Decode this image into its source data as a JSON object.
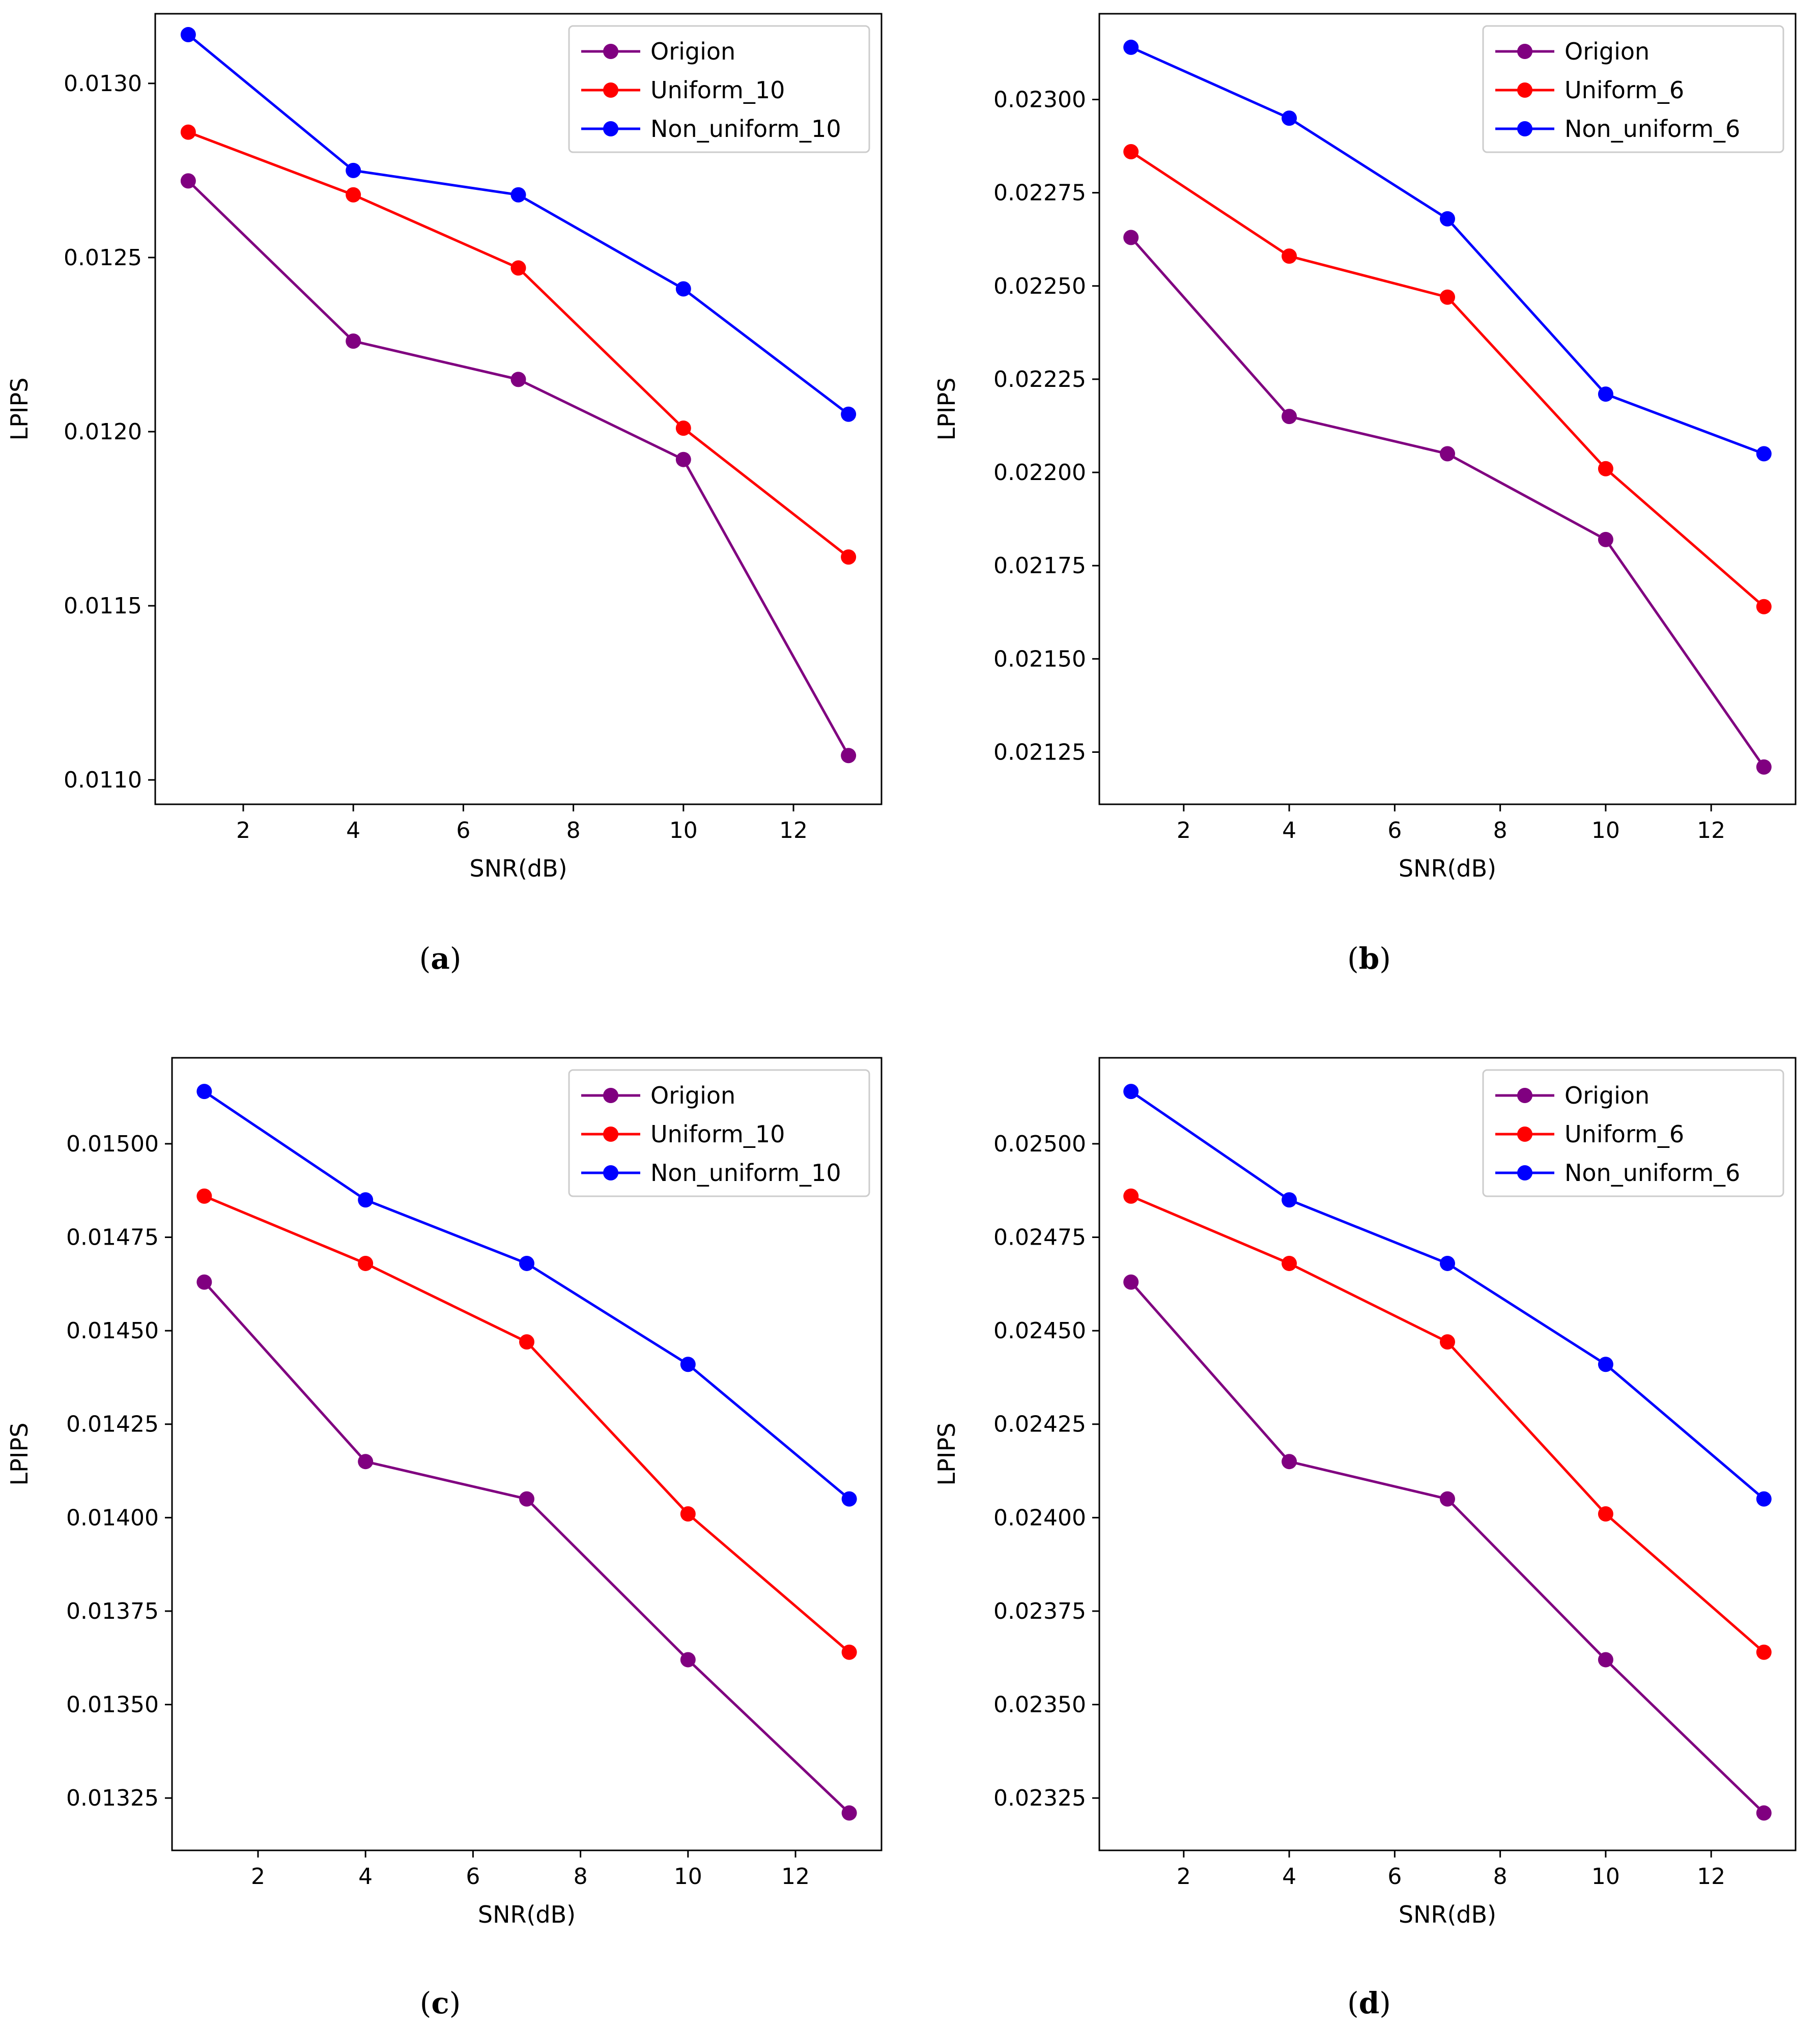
{
  "chart_data": [
    {
      "type": "line",
      "caption_letter": "a",
      "xlabel": "SNR(dB)",
      "ylabel": "LPIPS",
      "xlim": [
        0.4,
        13.6
      ],
      "xticks": [
        2,
        4,
        6,
        8,
        10,
        12
      ],
      "ylim": [
        0.01093,
        0.0132
      ],
      "yticks": [
        0.011,
        0.0115,
        0.012,
        0.0125,
        0.013
      ],
      "ytick_labels": [
        "0.0110",
        "0.0115",
        "0.0120",
        "0.0125",
        "0.0130"
      ],
      "x": [
        1,
        4,
        7,
        10,
        13
      ],
      "legend_position": "top-right",
      "series": [
        {
          "name": "Origion",
          "color": "#800080",
          "values": [
            0.01272,
            0.01226,
            0.01215,
            0.01192,
            0.01107
          ]
        },
        {
          "name": "Uniform_10",
          "color": "#ff0000",
          "values": [
            0.01286,
            0.01268,
            0.01247,
            0.01201,
            0.01164
          ]
        },
        {
          "name": "Non_uniform_10",
          "color": "#0000ff",
          "values": [
            0.01314,
            0.01275,
            0.01268,
            0.01241,
            0.01205
          ]
        }
      ]
    },
    {
      "type": "line",
      "caption_letter": "b",
      "xlabel": "SNR(dB)",
      "ylabel": "LPIPS",
      "xlim": [
        0.4,
        13.6
      ],
      "xticks": [
        2,
        4,
        6,
        8,
        10,
        12
      ],
      "ylim": [
        0.02111,
        0.02323
      ],
      "yticks": [
        0.02125,
        0.0215,
        0.02175,
        0.022,
        0.02225,
        0.0225,
        0.02275,
        0.023
      ],
      "ytick_labels": [
        "0.02125",
        "0.02150",
        "0.02175",
        "0.02200",
        "0.02225",
        "0.02250",
        "0.02275",
        "0.02300"
      ],
      "x": [
        1,
        4,
        7,
        10,
        13
      ],
      "legend_position": "top-right",
      "series": [
        {
          "name": "Origion",
          "color": "#800080",
          "values": [
            0.02263,
            0.02215,
            0.02205,
            0.02182,
            0.02121
          ]
        },
        {
          "name": "Uniform_6",
          "color": "#ff0000",
          "values": [
            0.02286,
            0.02258,
            0.02247,
            0.02201,
            0.02164
          ]
        },
        {
          "name": "Non_uniform_6",
          "color": "#0000ff",
          "values": [
            0.02314,
            0.02295,
            0.02268,
            0.02221,
            0.02205
          ]
        }
      ]
    },
    {
      "type": "line",
      "caption_letter": "c",
      "xlabel": "SNR(dB)",
      "ylabel": "LPIPS",
      "xlim": [
        0.4,
        13.6
      ],
      "xticks": [
        2,
        4,
        6,
        8,
        10,
        12
      ],
      "ylim": [
        0.01311,
        0.01523
      ],
      "yticks": [
        0.01325,
        0.0135,
        0.01375,
        0.014,
        0.01425,
        0.0145,
        0.01475,
        0.015
      ],
      "ytick_labels": [
        "0.01325",
        "0.01350",
        "0.01375",
        "0.01400",
        "0.01425",
        "0.01450",
        "0.01475",
        "0.01500"
      ],
      "x": [
        1,
        4,
        7,
        10,
        13
      ],
      "legend_position": "top-right",
      "series": [
        {
          "name": "Origion",
          "color": "#800080",
          "values": [
            0.01463,
            0.01415,
            0.01405,
            0.01362,
            0.01321
          ]
        },
        {
          "name": "Uniform_10",
          "color": "#ff0000",
          "values": [
            0.01486,
            0.01468,
            0.01447,
            0.01401,
            0.01364
          ]
        },
        {
          "name": "Non_uniform_10",
          "color": "#0000ff",
          "values": [
            0.01514,
            0.01485,
            0.01468,
            0.01441,
            0.01405
          ]
        }
      ]
    },
    {
      "type": "line",
      "caption_letter": "d",
      "xlabel": "SNR(dB)",
      "ylabel": "LPIPS",
      "xlim": [
        0.4,
        13.6
      ],
      "xticks": [
        2,
        4,
        6,
        8,
        10,
        12
      ],
      "ylim": [
        0.02311,
        0.02523
      ],
      "yticks": [
        0.02325,
        0.0235,
        0.02375,
        0.024,
        0.02425,
        0.0245,
        0.02475,
        0.025
      ],
      "ytick_labels": [
        "0.02325",
        "0.02350",
        "0.02375",
        "0.02400",
        "0.02425",
        "0.02450",
        "0.02475",
        "0.02500"
      ],
      "x": [
        1,
        4,
        7,
        10,
        13
      ],
      "legend_position": "top-right",
      "series": [
        {
          "name": "Origion",
          "color": "#800080",
          "values": [
            0.02463,
            0.02415,
            0.02405,
            0.02362,
            0.02321
          ]
        },
        {
          "name": "Uniform_6",
          "color": "#ff0000",
          "values": [
            0.02486,
            0.02468,
            0.02447,
            0.02401,
            0.02364
          ]
        },
        {
          "name": "Non_uniform_6",
          "color": "#0000ff",
          "values": [
            0.02514,
            0.02485,
            0.02468,
            0.02441,
            0.02405
          ]
        }
      ]
    }
  ]
}
